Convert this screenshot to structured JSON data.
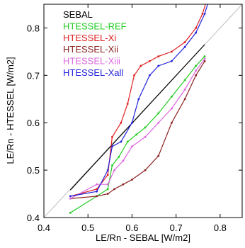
{
  "chart_data": {
    "type": "line",
    "xlabel": "LE/Rn - SEBAL [W/m2]",
    "ylabel": "LE/Rn - HTESSEL [W/m2]",
    "xlim": [
      0.4,
      0.85
    ],
    "ylim": [
      0.4,
      0.85
    ],
    "x_ticks": [
      "0.4",
      "0.5",
      "0.6",
      "0.7",
      "0.8"
    ],
    "y_ticks": [
      "0.4",
      "0.5",
      "0.6",
      "0.7",
      "0.8"
    ],
    "grid": false,
    "legend_position": "top-left",
    "reference_line": {
      "x": [
        0.4,
        0.85
      ],
      "y": [
        0.4,
        0.85
      ],
      "color": "#c0c0c0"
    },
    "series": [
      {
        "name": "SEBAL",
        "color": "#000000",
        "x": [
          0.46,
          0.765
        ],
        "y": [
          0.458,
          0.765
        ]
      },
      {
        "name": "HTESSEL-REF",
        "color": "#22cc22",
        "x": [
          0.46,
          0.52,
          0.545,
          0.555,
          0.57,
          0.59,
          0.61,
          0.63,
          0.66,
          0.69,
          0.72,
          0.745,
          0.765
        ],
        "y": [
          0.41,
          0.445,
          0.46,
          0.51,
          0.528,
          0.56,
          0.575,
          0.59,
          0.62,
          0.655,
          0.69,
          0.72,
          0.74
        ]
      },
      {
        "name": "HTESSEL-Xi",
        "color": "#e02020",
        "x": [
          0.46,
          0.52,
          0.545,
          0.555,
          0.575,
          0.59,
          0.605,
          0.62,
          0.64,
          0.66,
          0.69,
          0.72,
          0.745,
          0.76,
          0.77
        ],
        "y": [
          0.445,
          0.46,
          0.49,
          0.57,
          0.6,
          0.64,
          0.7,
          0.72,
          0.73,
          0.74,
          0.75,
          0.77,
          0.8,
          0.83,
          0.86
        ]
      },
      {
        "name": "HTESSEL-Xii",
        "color": "#8b2020",
        "x": [
          0.46,
          0.52,
          0.545,
          0.56,
          0.58,
          0.6,
          0.63,
          0.66,
          0.69,
          0.72,
          0.745,
          0.765
        ],
        "y": [
          0.44,
          0.445,
          0.45,
          0.46,
          0.47,
          0.48,
          0.5,
          0.53,
          0.6,
          0.65,
          0.7,
          0.73
        ]
      },
      {
        "name": "HTESSEL-Xiii",
        "color": "#dd66dd",
        "x": [
          0.46,
          0.52,
          0.545,
          0.56,
          0.58,
          0.6,
          0.63,
          0.66,
          0.69,
          0.72,
          0.745,
          0.765
        ],
        "y": [
          0.44,
          0.47,
          0.47,
          0.5,
          0.52,
          0.55,
          0.57,
          0.6,
          0.63,
          0.67,
          0.71,
          0.735
        ]
      },
      {
        "name": "HTESSEL-Xall",
        "color": "#2222dd",
        "x": [
          0.46,
          0.52,
          0.545,
          0.555,
          0.575,
          0.6,
          0.615,
          0.64,
          0.66,
          0.69,
          0.72,
          0.745,
          0.765,
          0.775
        ],
        "y": [
          0.445,
          0.455,
          0.5,
          0.55,
          0.56,
          0.6,
          0.65,
          0.7,
          0.72,
          0.73,
          0.76,
          0.79,
          0.83,
          0.86
        ]
      }
    ]
  }
}
